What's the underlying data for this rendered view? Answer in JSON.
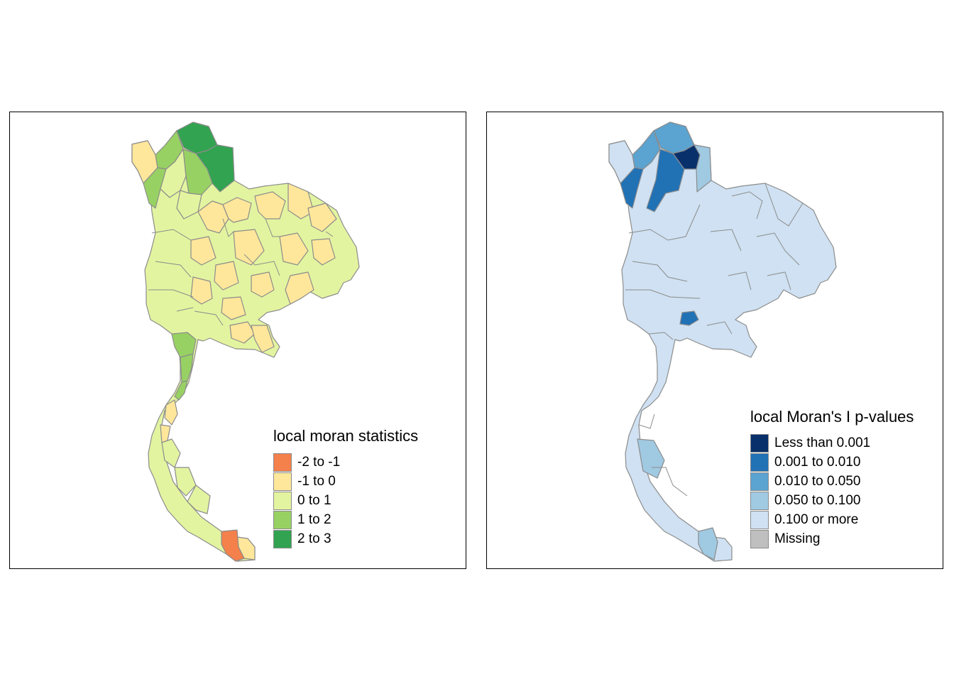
{
  "left_map": {
    "legend_title": "local moran statistics",
    "classes": [
      {
        "label": "-2 to -1",
        "color": "#f4804b"
      },
      {
        "label": "-1 to 0",
        "color": "#fee79b"
      },
      {
        "label": "0 to 1",
        "color": "#e3f4a0"
      },
      {
        "label": "1 to 2",
        "color": "#98d163"
      },
      {
        "label": "2 to 3",
        "color": "#32a350"
      }
    ]
  },
  "right_map": {
    "legend_title": "local Moran's I p-values",
    "classes": [
      {
        "label": "Less than 0.001",
        "color": "#08306b"
      },
      {
        "label": "0.001 to 0.010",
        "color": "#2171b5"
      },
      {
        "label": "0.010 to 0.050",
        "color": "#5ba3d0"
      },
      {
        "label": "0.050 to 0.100",
        "color": "#a0c9e2"
      },
      {
        "label": "0.100 or more",
        "color": "#cfe1f2"
      },
      {
        "label": "Missing",
        "color": "#bfbfbf"
      }
    ]
  },
  "border_color": "#8c8c8c"
}
